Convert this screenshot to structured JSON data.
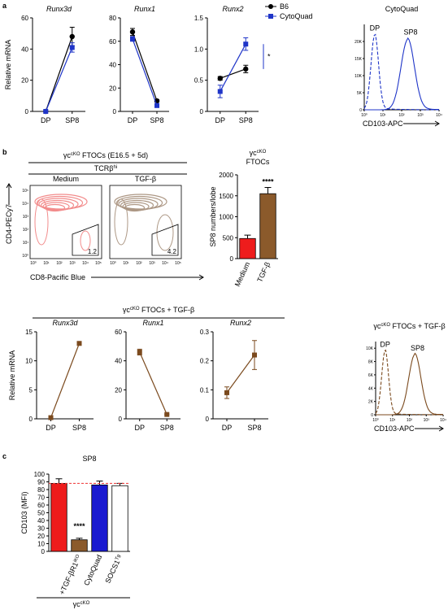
{
  "panel_labels": [
    "a",
    "b",
    "c"
  ],
  "chart_data": [
    {
      "type": "line",
      "title": "Runx3d",
      "ylabel": "Relative mRNA",
      "categories": [
        "DP",
        "SP8"
      ],
      "series": [
        {
          "color": "#000000",
          "marker": "circle",
          "values": [
            0,
            48
          ],
          "errors": [
            0,
            6
          ]
        },
        {
          "color": "#1f35c8",
          "marker": "square",
          "values": [
            0,
            41
          ],
          "errors": [
            0,
            3
          ]
        }
      ],
      "ylim": [
        0,
        60
      ],
      "yticks": [
        0,
        20,
        40,
        60
      ]
    },
    {
      "type": "line",
      "title": "Runx1",
      "categories": [
        "DP",
        "SP8"
      ],
      "series": [
        {
          "color": "#000000",
          "marker": "circle",
          "values": [
            68,
            9
          ],
          "errors": [
            3,
            1
          ]
        },
        {
          "color": "#1f35c8",
          "marker": "square",
          "values": [
            62,
            5
          ],
          "errors": [
            2,
            1
          ]
        }
      ],
      "ylim": [
        0,
        80
      ],
      "yticks": [
        0,
        20,
        40,
        60,
        80
      ]
    },
    {
      "type": "line",
      "title": "Runx2",
      "categories": [
        "DP",
        "SP8"
      ],
      "series": [
        {
          "name": "B6",
          "color": "#000000",
          "marker": "circle",
          "values": [
            0.53,
            0.68
          ],
          "errors": [
            0.03,
            0.06
          ]
        },
        {
          "name": "CytoQuad",
          "color": "#1f35c8",
          "marker": "square",
          "values": [
            0.32,
            1.08
          ],
          "errors": [
            0.1,
            0.1
          ]
        }
      ],
      "ylim": [
        0,
        1.5
      ],
      "yticks": [
        0,
        0.5,
        {
          "value": 1,
          "label": "1.0"
        },
        1.5
      ],
      "annotation": "*"
    },
    {
      "type": "density",
      "title": "CytoQuad",
      "xlabel": "CD103-APC",
      "curve_labels": [
        "DP",
        "SP8"
      ],
      "color": "#1f35c8",
      "log": true,
      "xlim": [
        1,
        10000
      ],
      "xticks": [
        {
          "value": 1,
          "label": "10⁰"
        },
        {
          "value": 10,
          "label": "10¹"
        },
        {
          "value": 100,
          "label": "10²"
        },
        {
          "value": 1000,
          "label": "10³"
        },
        {
          "value": 10000,
          "label": "10⁴"
        }
      ],
      "ylim": [
        0,
        25000
      ],
      "yticks": [
        0,
        {
          "value": 5000,
          "label": "5K"
        },
        {
          "value": 10000,
          "label": "10K"
        },
        {
          "value": 15000,
          "label": "15K"
        },
        {
          "value": 20000,
          "label": "20K"
        }
      ]
    },
    {
      "type": "bar",
      "title": "γc",
      "title_sup": "cKO",
      "title_line2": "FTOCs",
      "ylabel": "SP8 numbers/lobe",
      "categories": [
        "Medium",
        "TGF-β"
      ],
      "values": [
        480,
        1550
      ],
      "errors": [
        80,
        150
      ],
      "colors": [
        "#ee1c1c",
        "#8b5a2b"
      ],
      "ylim": [
        0,
        2000
      ],
      "yticks": [
        0,
        500,
        1000,
        1500,
        2000
      ],
      "annotation": "****"
    },
    {
      "type": "line",
      "title": "Runx3d",
      "ylabel": "Relative mRNA",
      "categories": [
        "DP",
        "SP8"
      ],
      "series": [
        {
          "color": "#7b4a1e",
          "marker": "square",
          "values": [
            0.2,
            13
          ],
          "errors": [
            0.1,
            0.2
          ]
        }
      ],
      "ylim": [
        0,
        15
      ],
      "yticks": [
        0,
        5,
        10,
        15
      ]
    },
    {
      "type": "line",
      "title": "Runx1",
      "categories": [
        "DP",
        "SP8"
      ],
      "series": [
        {
          "color": "#7b4a1e",
          "marker": "square",
          "values": [
            46,
            3
          ],
          "errors": [
            2,
            0.3
          ]
        }
      ],
      "ylim": [
        0,
        60
      ],
      "yticks": [
        0,
        20,
        40,
        60
      ]
    },
    {
      "type": "line",
      "title": "Runx2",
      "categories": [
        "DP",
        "SP8"
      ],
      "series": [
        {
          "color": "#7b4a1e",
          "marker": "square",
          "values": [
            0.09,
            0.22
          ],
          "errors": [
            0.02,
            0.05
          ]
        }
      ],
      "ylim": [
        0,
        0.3
      ],
      "yticks": [
        0,
        0.1,
        0.2,
        0.3
      ]
    },
    {
      "type": "density",
      "title": "γc",
      "title_sup": "cKO",
      "title_rest": " FTOCs + TGF-β",
      "xlabel": "CD103-APC",
      "curve_labels": [
        "DP",
        "SP8"
      ],
      "color": "#7b4a1e",
      "log": true,
      "xlim": [
        1,
        10000
      ],
      "xticks": [
        {
          "value": 1,
          "label": "10⁰"
        },
        {
          "value": 10,
          "label": "10¹"
        },
        {
          "value": 100,
          "label": "10²"
        },
        {
          "value": 1000,
          "label": "10³"
        },
        {
          "value": 10000,
          "label": "10⁴"
        }
      ],
      "ylim": [
        0,
        11000
      ],
      "yticks": [
        0,
        {
          "value": 2000,
          "label": "2K"
        },
        {
          "value": 4000,
          "label": "4K"
        },
        {
          "value": 6000,
          "label": "6K"
        },
        {
          "value": 8000,
          "label": "8K"
        },
        {
          "value": 10000,
          "label": "10K"
        }
      ]
    },
    {
      "type": "bar",
      "title": "SP8",
      "ylabel": "CD103 (MFI)",
      "categories": [
        null,
        "+TGF-βR1",
        "CytoQuad",
        "SOCS1"
      ],
      "category_sup": [
        null,
        "iKO",
        null,
        "Tg"
      ],
      "values": [
        88,
        15,
        86,
        85
      ],
      "errors": [
        6,
        2,
        5,
        3
      ],
      "colors": [
        "#ee1c1c",
        "#8b5a2b",
        "#1a1ad0",
        "#ffffff"
      ],
      "ylim": [
        0,
        100
      ],
      "yticks": [
        0,
        10,
        20,
        30,
        40,
        50,
        60,
        70,
        80,
        90,
        100
      ],
      "reference": 88,
      "annotation": "****",
      "group_label": "γc",
      "group_sup": "cKO"
    }
  ],
  "row_header": {
    "text": "γc",
    "sup": "cKO",
    "rest": " FTOCs + TGF-β"
  },
  "flow": {
    "header": {
      "text": "γc",
      "sup": "cKO",
      "rest": " FTOCs (E16.5 + 5d)"
    },
    "gate_label": {
      "text": "TCRβ",
      "sup": "hi"
    },
    "panels": [
      {
        "title": "Medium",
        "gate": 1.2,
        "color": "#e83030"
      },
      {
        "title": "TGF-β",
        "gate": 4.2,
        "color": "#6b4423"
      }
    ],
    "xlabel": "CD8-Pacific Blue",
    "ylabel": "CD4-PECy7",
    "ticks": [
      "10⁰",
      "10¹",
      "10²",
      "10³",
      "10⁴",
      "10⁵"
    ]
  }
}
